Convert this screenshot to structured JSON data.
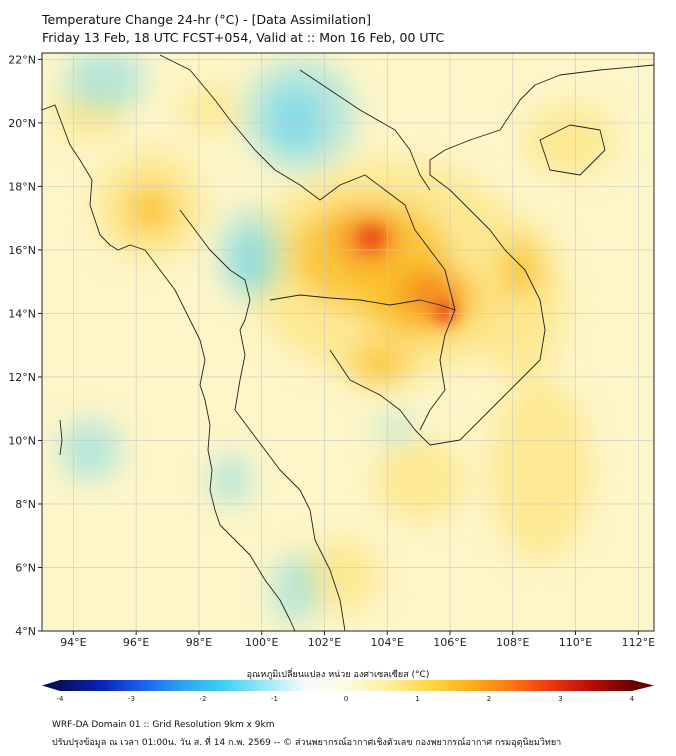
{
  "title": {
    "line1": "Temperature Change 24-hr (°C) - [Data Assimilation]",
    "line2": "Friday 13 Feb, 18 UTC FCST+054, Valid at :: Mon 16 Feb, 00 UTC"
  },
  "map": {
    "lon_range": [
      93,
      112.5
    ],
    "lat_range": [
      4,
      22.2
    ],
    "lon_ticks": [
      "94°E",
      "96°E",
      "98°E",
      "100°E",
      "102°E",
      "104°E",
      "106°E",
      "108°E",
      "110°E",
      "112°E"
    ],
    "lat_ticks": [
      "4°N",
      "6°N",
      "8°N",
      "10°N",
      "12°N",
      "14°N",
      "16°N",
      "18°N",
      "20°N",
      "22°N"
    ],
    "colors": {
      "background_warm": "#fdf6c8",
      "cool": "#5fd3f1",
      "warm_light": "#fde68a",
      "warm_mid": "#fbbf24",
      "hot": "#f47a1f",
      "hottest": "#e8501a",
      "boundary": "#222222"
    }
  },
  "colorbar": {
    "label": "อุณหภูมิเปลี่ยนแปลง หน่วย องศาเซลเซียส (°C)",
    "min": -4,
    "max": 4,
    "ticks": [
      "-4",
      "-3",
      "-2",
      "-1",
      "0",
      "1",
      "2",
      "3",
      "4"
    ],
    "stops": [
      "#08105e",
      "#0b22b5",
      "#1c5ef2",
      "#2ea3f0",
      "#3fd0f2",
      "#9be7f7",
      "#f5fbfd",
      "#fdfbe0",
      "#fff0a0",
      "#ffd84a",
      "#ffb21c",
      "#ff7a12",
      "#f0380d",
      "#b80d0a",
      "#6b0000"
    ]
  },
  "footer": {
    "line1": "WRF-DA Domain 01 :: Grid Resolution 9km x 9km",
    "line2": "ปรับปรุงข้อมูล ณ เวลา 01:00น. วัน ส. ที่ 14 ก.พ. 2569 -- © ส่วนพยากรณ์อากาศเชิงตัวเลข กองพยากรณ์อากาศ กรมอุตุนิยมวิทยา"
  }
}
